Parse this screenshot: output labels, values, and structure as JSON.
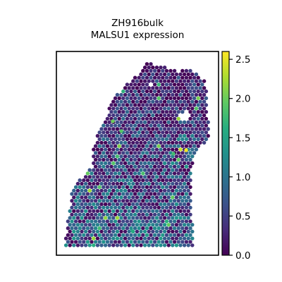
{
  "chart_data": {
    "type": "scatter",
    "title": "ZH916bulk",
    "subtitle": "MALSU1 expression",
    "xlabel": "",
    "ylabel": "",
    "grid": false,
    "legend": "none",
    "colorbar": {
      "colormap": "viridis",
      "min": 0.0,
      "max": 2.6,
      "ticks": [
        0.0,
        0.5,
        1.0,
        1.5,
        2.0,
        2.5
      ],
      "tick_labels": [
        "0.0",
        "0.5",
        "1.0",
        "1.5",
        "2.0",
        "2.5"
      ]
    },
    "points_description_value_range": [
      0.0,
      2.6
    ],
    "x": [],
    "y": []
  }
}
